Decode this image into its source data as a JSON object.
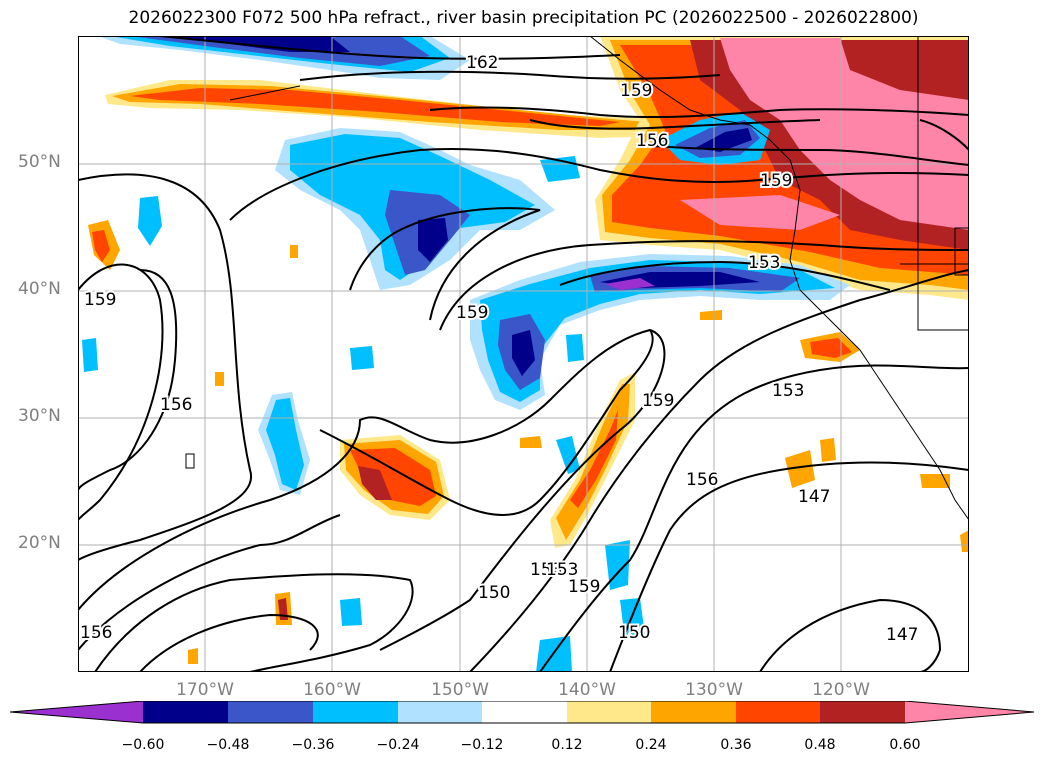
{
  "title": "2026022300 F072 500 hPa refract., river basin precipitation PC (2026022500 - 2026022800)",
  "latitude_labels": [
    "50°N",
    "40°N",
    "30°N",
    "20°N"
  ],
  "longitude_labels": [
    "170°W",
    "160°W",
    "150°W",
    "140°W",
    "130°W",
    "120°W"
  ],
  "contour_labels": [
    "162",
    "159",
    "156",
    "153",
    "159",
    "159",
    "156",
    "159",
    "153",
    "156",
    "153",
    "147",
    "150",
    "153",
    "159",
    "150",
    "156",
    "147",
    "159"
  ],
  "colorbar": {
    "ticks": [
      "−0.60",
      "−0.48",
      "−0.36",
      "−0.24",
      "−0.12",
      "0.12",
      "0.24",
      "0.36",
      "0.48",
      "0.60"
    ],
    "colors": [
      "#9b30d0",
      "#00008b",
      "#3a56c8",
      "#00bfff",
      "#b0e2ff",
      "#ffffff",
      "#ffe88a",
      "#ffa500",
      "#ff4500",
      "#b22222",
      "#ff85a8"
    ]
  }
}
